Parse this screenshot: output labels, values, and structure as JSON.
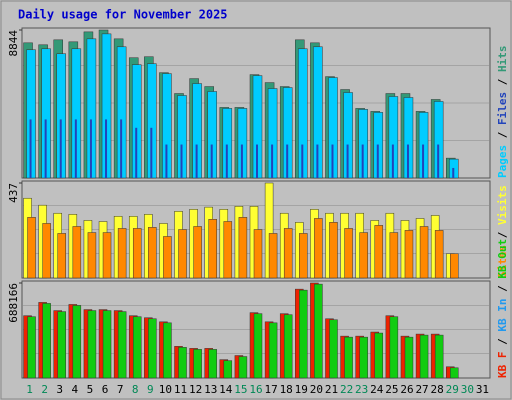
{
  "title": "Daily usage for November 2025",
  "chart_data": [
    {
      "type": "bar",
      "ylim": [
        0,
        8844
      ],
      "yticks": [
        8844
      ],
      "series": [
        {
          "name": "Pages",
          "color": "#00ccff",
          "values": [
            7663,
            7722,
            7425,
            7722,
            8316,
            8613,
            7841,
            6772,
            6831,
            6237,
            4930,
            5643,
            5168,
            4158,
            4158,
            6118,
            5346,
            5405,
            7722,
            7841,
            5999,
            5108,
            4099,
            3920,
            4871,
            4811,
            3920,
            4574,
            1129,
            null,
            null
          ]
        },
        {
          "name": "Files",
          "color": "#2244bb",
          "values": [
            3500,
            3500,
            3500,
            3500,
            3500,
            3500,
            3500,
            3000,
            3000,
            2000,
            2000,
            2000,
            2000,
            2000,
            2000,
            2000,
            2000,
            2000,
            2000,
            2000,
            2000,
            2000,
            2000,
            2000,
            2000,
            2000,
            2000,
            2000,
            600,
            null,
            null
          ]
        },
        {
          "name": "Hits",
          "color": "#339977",
          "values": [
            8078,
            7960,
            8257,
            8138,
            8732,
            8844,
            8316,
            7187,
            7247,
            6296,
            5049,
            5940,
            5465,
            4217,
            4217,
            6178,
            5702,
            5465,
            8257,
            8078,
            6059,
            5287,
            4158,
            3980,
            5049,
            5049,
            3980,
            4693,
            1188,
            null,
            null
          ]
        }
      ]
    },
    {
      "type": "bar",
      "ylim": [
        0,
        437
      ],
      "yticks": [
        437
      ],
      "series": [
        {
          "name": "Sites",
          "color": "#ff8800",
          "values": [
            279,
            251,
            205,
            237,
            209,
            209,
            228,
            228,
            233,
            191,
            223,
            237,
            270,
            260,
            279,
            223,
            205,
            228,
            205,
            274,
            256,
            228,
            209,
            242,
            209,
            219,
            237,
            219,
            112,
            null,
            null
          ]
        },
        {
          "name": "Visits",
          "color": "#ffff33",
          "values": [
            367,
            335,
            298,
            293,
            265,
            260,
            284,
            284,
            293,
            251,
            307,
            316,
            326,
            316,
            330,
            330,
            437,
            298,
            256,
            316,
            298,
            298,
            298,
            265,
            298,
            265,
            274,
            288,
            112,
            null,
            null
          ]
        }
      ]
    },
    {
      "type": "bar",
      "ylim": [
        0,
        688166
      ],
      "yticks": [
        688166
      ],
      "categories": [
        "1",
        "2",
        "3",
        "4",
        "5",
        "6",
        "7",
        "8",
        "9",
        "10",
        "11",
        "12",
        "13",
        "14",
        "15",
        "16",
        "17",
        "18",
        "19",
        "20",
        "21",
        "22",
        "23",
        "24",
        "25",
        "26",
        "27",
        "28",
        "29",
        "30",
        "31"
      ],
      "category_colors": [
        "#008855",
        "#008855",
        "#000000",
        "#000000",
        "#000000",
        "#000000",
        "#000000",
        "#008855",
        "#008855",
        "#000000",
        "#000000",
        "#000000",
        "#000000",
        "#000000",
        "#008855",
        "#008855",
        "#000000",
        "#000000",
        "#000000",
        "#000000",
        "#000000",
        "#008855",
        "#008855",
        "#000000",
        "#000000",
        "#000000",
        "#000000",
        "#000000",
        "#008855",
        "#008855",
        "#000000"
      ],
      "series": [
        {
          "name": "KB F",
          "color": "#ee2200",
          "values": [
            451400,
            547600,
            488400,
            532800,
            495800,
            495800,
            488400,
            451400,
            436600,
            407000,
            229400,
            214600,
            214600,
            133200,
            162800,
            473600,
            407000,
            466200,
            643800,
            688166,
            429200,
            303400,
            303400,
            333000,
            451400,
            303400,
            318200,
            318200,
            81400,
            null,
            null
          ]
        },
        {
          "name": "KB In",
          "color": "#2299ee",
          "values": [
            0,
            0,
            0,
            0,
            0,
            0,
            0,
            0,
            0,
            0,
            0,
            0,
            0,
            0,
            0,
            0,
            0,
            0,
            0,
            0,
            0,
            0,
            0,
            0,
            0,
            0,
            0,
            0,
            0,
            null,
            null
          ]
        },
        {
          "name": "KB Out",
          "color": "#11cc11",
          "values": [
            444000,
            540200,
            481000,
            525400,
            488400,
            488400,
            481000,
            444000,
            429200,
            399600,
            222000,
            207200,
            207200,
            125800,
            155400,
            466200,
            399600,
            458800,
            636400,
            680000,
            421800,
            296000,
            296000,
            325600,
            444000,
            296000,
            310800,
            310800,
            74000,
            null,
            null
          ]
        }
      ]
    }
  ]
}
